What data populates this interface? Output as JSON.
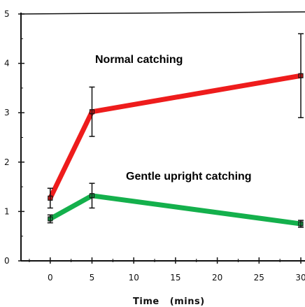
{
  "chart_data": {
    "type": "line",
    "xlabel": "Time   (mins)",
    "ylabel": "",
    "xlim": [
      -3.5,
      30.5
    ],
    "ylim": [
      0,
      5
    ],
    "xticks": [
      0,
      5,
      10,
      15,
      20,
      25,
      30
    ],
    "xtick_labels": [
      "0",
      "5",
      "10",
      "15",
      "20",
      "25",
      "30"
    ],
    "yticks": [
      0,
      1,
      2,
      3,
      4,
      5
    ],
    "ytick_labels": [
      "0",
      "1",
      "2",
      "3",
      "4",
      "5"
    ],
    "grid": false,
    "series": [
      {
        "name": "Normal catching",
        "color": "#ee1c1c",
        "x": [
          0,
          5,
          30
        ],
        "y": [
          1.27,
          3.02,
          3.75
        ],
        "err": [
          0.2,
          0.5,
          0.85
        ]
      },
      {
        "name": "Gentle upright catching",
        "color": "#14b04c",
        "x": [
          0,
          5,
          30
        ],
        "y": [
          0.85,
          1.32,
          0.75
        ],
        "err": [
          0.08,
          0.25,
          0.07
        ]
      }
    ]
  }
}
